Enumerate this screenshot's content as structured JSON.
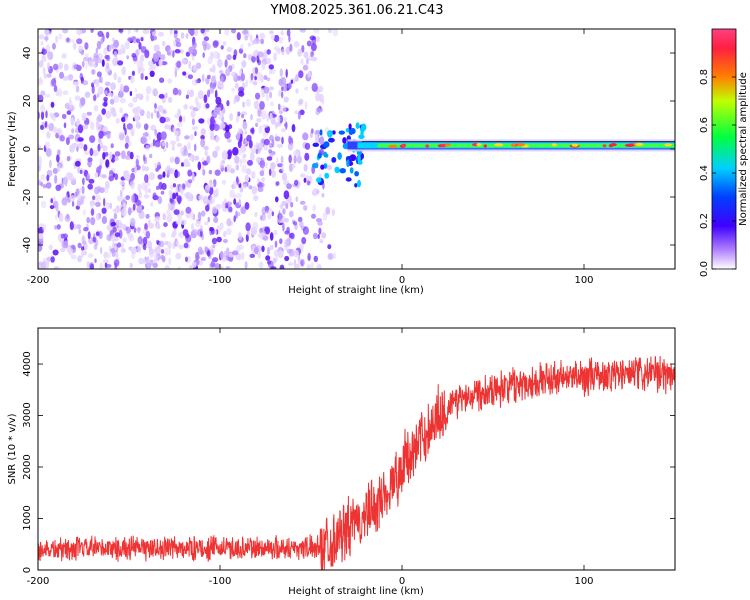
{
  "title": "YM08.2025.361.06.21.C43",
  "chart_data": [
    {
      "type": "heatmap",
      "name": "spectrogram",
      "xlabel": "Height of straight line (km)",
      "ylabel": "Frequency (Hz)",
      "xlim": [
        -200,
        150
      ],
      "ylim": [
        -50,
        50
      ],
      "xticks": [
        -200,
        -100,
        0,
        100
      ],
      "yticks": [
        -40,
        -20,
        0,
        20,
        40
      ],
      "colorbar": {
        "label": "Normalized spectral amplitude",
        "range": [
          0,
          1
        ],
        "ticks": [
          0.0,
          0.2,
          0.4,
          0.6,
          0.8
        ],
        "tick_labels": [
          "0.0",
          "0.2",
          "0.4",
          "0.6",
          "0.8"
        ],
        "colormap": [
          "#ffffff",
          "#8000ff",
          "#0000ff",
          "#00c0ff",
          "#00ff00",
          "#ffff00",
          "#ff8000",
          "#ff0000"
        ]
      },
      "description_series": [
        {
          "name": "noise_region",
          "x_range": [
            -200,
            -45
          ],
          "amplitude": 0.1
        },
        {
          "name": "transition",
          "x_range": [
            -45,
            -20
          ],
          "freq_range": [
            -20,
            10
          ],
          "amplitude": 0.3
        },
        {
          "name": "signal_band",
          "x_range": [
            -20,
            150
          ],
          "freq_center": 1.5,
          "amplitude": 0.6
        }
      ]
    },
    {
      "type": "line",
      "name": "snr",
      "xlabel": "Height of straight line (km)",
      "ylabel": "SNR (10 * v/v)",
      "xlim": [
        -200,
        150
      ],
      "ylim": [
        0,
        4700
      ],
      "xticks": [
        -200,
        -100,
        0,
        100
      ],
      "yticks": [
        0,
        1000,
        2000,
        3000,
        4000
      ],
      "color": "#ee3333",
      "series": [
        {
          "name": "snr_mean",
          "x": [
            -200,
            -150,
            -100,
            -60,
            -45,
            -35,
            -25,
            -15,
            -5,
            0,
            10,
            20,
            30,
            40,
            60,
            80,
            100,
            120,
            150
          ],
          "y": [
            400,
            420,
            420,
            430,
            450,
            650,
            900,
            1200,
            1700,
            2000,
            2500,
            3000,
            3300,
            3450,
            3600,
            3700,
            3750,
            3800,
            3800
          ]
        }
      ]
    }
  ],
  "tick_labels": {
    "top_x": [
      "-200",
      "-100",
      "0",
      "100"
    ],
    "top_y": [
      "-40",
      "-20",
      "0",
      "20",
      "40"
    ],
    "bottom_x": [
      "-200",
      "-100",
      "0",
      "100"
    ],
    "bottom_y": [
      "0",
      "1000",
      "2000",
      "3000",
      "4000"
    ]
  }
}
